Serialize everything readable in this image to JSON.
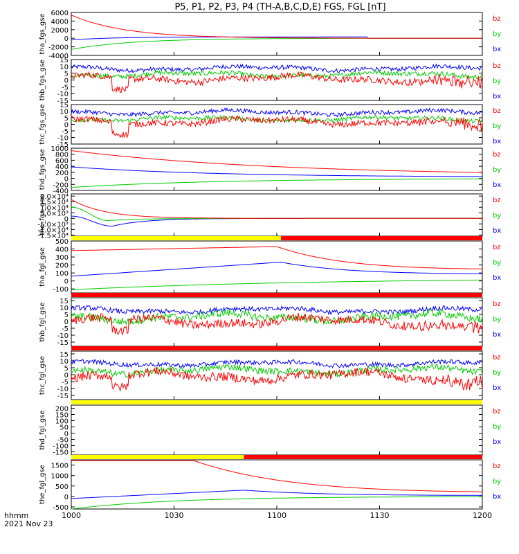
{
  "chart_data": {
    "title": "P5, P1, P2, P3, P4 (TH-A,B,C,D,E) FGS, FGL [nT]",
    "type": "line",
    "x_tick_labels": [
      "1000",
      "1030",
      "1100",
      "1130",
      "1200"
    ],
    "x_axis_label": "hhmm",
    "date_label": "2021 Nov 23",
    "colors": {
      "bx": "#0000ff",
      "by": "#00cc00",
      "bz": "#ff0000",
      "flag_yellow": "#ffff00",
      "flag_red": "#ff0000"
    },
    "legend_labels": [
      "bz",
      "by",
      "bx"
    ],
    "panels": [
      {
        "id": "tha_fgs_gse",
        "ylabel": "tha_fgs_gse",
        "yticks": [
          "6000",
          "4000",
          "2000",
          "0",
          "-2000",
          "-4000"
        ],
        "ylim": [
          -4000,
          6000
        ],
        "series": {
          "bz": {
            "shape": "decay",
            "start": 5400,
            "end": 0,
            "tau": 0.13
          },
          "bx": {
            "shape": "rise",
            "start": -400,
            "end": 300,
            "tau": 0.1
          },
          "by": {
            "shape": "rise",
            "start": -2600,
            "end": 0,
            "tau": 0.15
          }
        },
        "data_end": 0.72
      },
      {
        "id": "thb_fgs_gse",
        "ylabel": "thb_fgs_gse",
        "yticks": [
          "15",
          "10",
          "5",
          "0",
          "-5",
          "-10",
          "-15"
        ],
        "ylim": [
          -15,
          15
        ],
        "series": {
          "bx": {
            "shape": "noisy",
            "base": 8.5,
            "noise": 2.0
          },
          "by": {
            "shape": "noisy",
            "base": 4.0,
            "noise": 2.2
          },
          "bz": {
            "shape": "noisy",
            "base": 1.0,
            "noise": 3.0
          }
        }
      },
      {
        "id": "thc_fgs_gse",
        "ylabel": "thc_fgs_gse",
        "yticks": [
          "15",
          "10",
          "5",
          "0",
          "-5",
          "-10",
          "-15"
        ],
        "ylim": [
          -15,
          15
        ],
        "series": {
          "bx": {
            "shape": "noisy",
            "base": 9.0,
            "noise": 2.0
          },
          "by": {
            "shape": "noisy",
            "base": 4.0,
            "noise": 2.0
          },
          "bz": {
            "shape": "noisy",
            "base": 2.0,
            "noise": 3.0
          }
        }
      },
      {
        "id": "thd_fgs_gse",
        "ylabel": "thd_fgs_gse",
        "yticks": [
          "1000",
          "800",
          "600",
          "400",
          "200",
          "0",
          "-200",
          "-400"
        ],
        "ylim": [
          -400,
          1000
        ],
        "series": {
          "bz": {
            "shape": "decay",
            "start": 920,
            "end": 80,
            "tau": 0.5
          },
          "bx": {
            "shape": "decay",
            "start": 380,
            "end": 40,
            "tau": 0.35
          },
          "by": {
            "shape": "rise",
            "start": -300,
            "end": 0,
            "tau": 0.35
          }
        }
      },
      {
        "id": "the_fgs_gse",
        "ylabel": "the_fgs_gse",
        "yticks": [
          "2.0×10⁴",
          "1.5×10⁴",
          "1.0×10⁴",
          "5.0×10³",
          "0",
          "-5.0×10³",
          "-1.0×10⁴",
          "-1.5×10⁴"
        ],
        "ylim": [
          -16000,
          22000
        ],
        "series": {
          "bz": {
            "shape": "decay",
            "start": 17000,
            "end": 0,
            "tau": 0.08
          },
          "by": {
            "shape": "dip",
            "start": 10000,
            "min": -2000,
            "end": 0,
            "tmin": 0.09
          },
          "bx": {
            "shape": "dip",
            "start": 2000,
            "min": -7000,
            "end": 0,
            "tmin": 0.1
          }
        },
        "data_end": 0.57
      },
      {
        "id": "tha_fgl_gse",
        "ylabel": "tha_fgl_gse",
        "yticks": [
          "500",
          "400",
          "300",
          "200",
          "100",
          "0",
          "-100"
        ],
        "ylim": [
          -150,
          500
        ],
        "flag_bar": [
          {
            "from": 0,
            "to": 0.51,
            "color": "yellow"
          },
          {
            "from": 0.51,
            "to": 1,
            "color": "red"
          }
        ],
        "series": {
          "bz": {
            "shape": "peak",
            "start": 380,
            "peak": 430,
            "tpeak": 0.5,
            "end": 150
          },
          "bx": {
            "shape": "peak",
            "start": 60,
            "peak": 235,
            "tpeak": 0.51,
            "end": 90
          },
          "by": {
            "shape": "rise",
            "start": -110,
            "end": 40,
            "tau": 0.6
          }
        }
      },
      {
        "id": "thb_fgl_gse",
        "ylabel": "thb_fgl_gse",
        "yticks": [
          "15",
          "10",
          "5",
          "0",
          "-5",
          "-10",
          "-15"
        ],
        "ylim": [
          -18,
          17
        ],
        "flag_bar": [
          {
            "from": 0,
            "to": 1,
            "color": "red"
          }
        ],
        "series": {
          "bx": {
            "shape": "noisy",
            "base": 8.0,
            "noise": 2.2
          },
          "by": {
            "shape": "noisy",
            "base": 3.0,
            "noise": 3.5
          },
          "bz": {
            "shape": "noisy",
            "base": 0.0,
            "noise": 4.0
          }
        }
      },
      {
        "id": "thc_fgl_gse",
        "ylabel": "thc_fgl_gse",
        "yticks": [
          "15",
          "10",
          "5",
          "0",
          "-5",
          "-10",
          "-15"
        ],
        "ylim": [
          -18,
          17
        ],
        "flag_bar": [
          {
            "from": 0,
            "to": 1,
            "color": "red"
          }
        ],
        "series": {
          "bx": {
            "shape": "noisy",
            "base": 8.0,
            "noise": 2.0
          },
          "by": {
            "shape": "noisy",
            "base": 3.0,
            "noise": 3.0
          },
          "bz": {
            "shape": "noisy",
            "base": -1.0,
            "noise": 4.0
          }
        }
      },
      {
        "id": "thd_fgl_gse",
        "ylabel": "thd_fgl_gse",
        "yticks": [
          "200",
          "150",
          "100",
          "50",
          "0",
          "-50",
          "-100",
          "-150"
        ],
        "ylim": [
          -175,
          225
        ],
        "flag_bar": [
          {
            "from": 0,
            "to": 1,
            "color": "yellow"
          }
        ],
        "series": {}
      },
      {
        "id": "the_fgl_gse",
        "ylabel": "the_fgl_gse",
        "yticks": [
          "1500",
          "1000",
          "500",
          "0",
          "-500"
        ],
        "ylim": [
          -600,
          1750
        ],
        "flag_bar": [
          {
            "from": 0,
            "to": 0.42,
            "color": "yellow"
          },
          {
            "from": 0.42,
            "to": 1,
            "color": "red"
          }
        ],
        "series": {
          "bz": {
            "shape": "peak",
            "start": 1700,
            "peak": 1700,
            "tpeak": 0.3,
            "end": 220
          },
          "bx": {
            "shape": "peak",
            "start": -100,
            "peak": 300,
            "tpeak": 0.42,
            "end": 50
          },
          "by": {
            "shape": "rise",
            "start": -600,
            "end": 0,
            "tau": 0.25
          }
        }
      }
    ]
  }
}
